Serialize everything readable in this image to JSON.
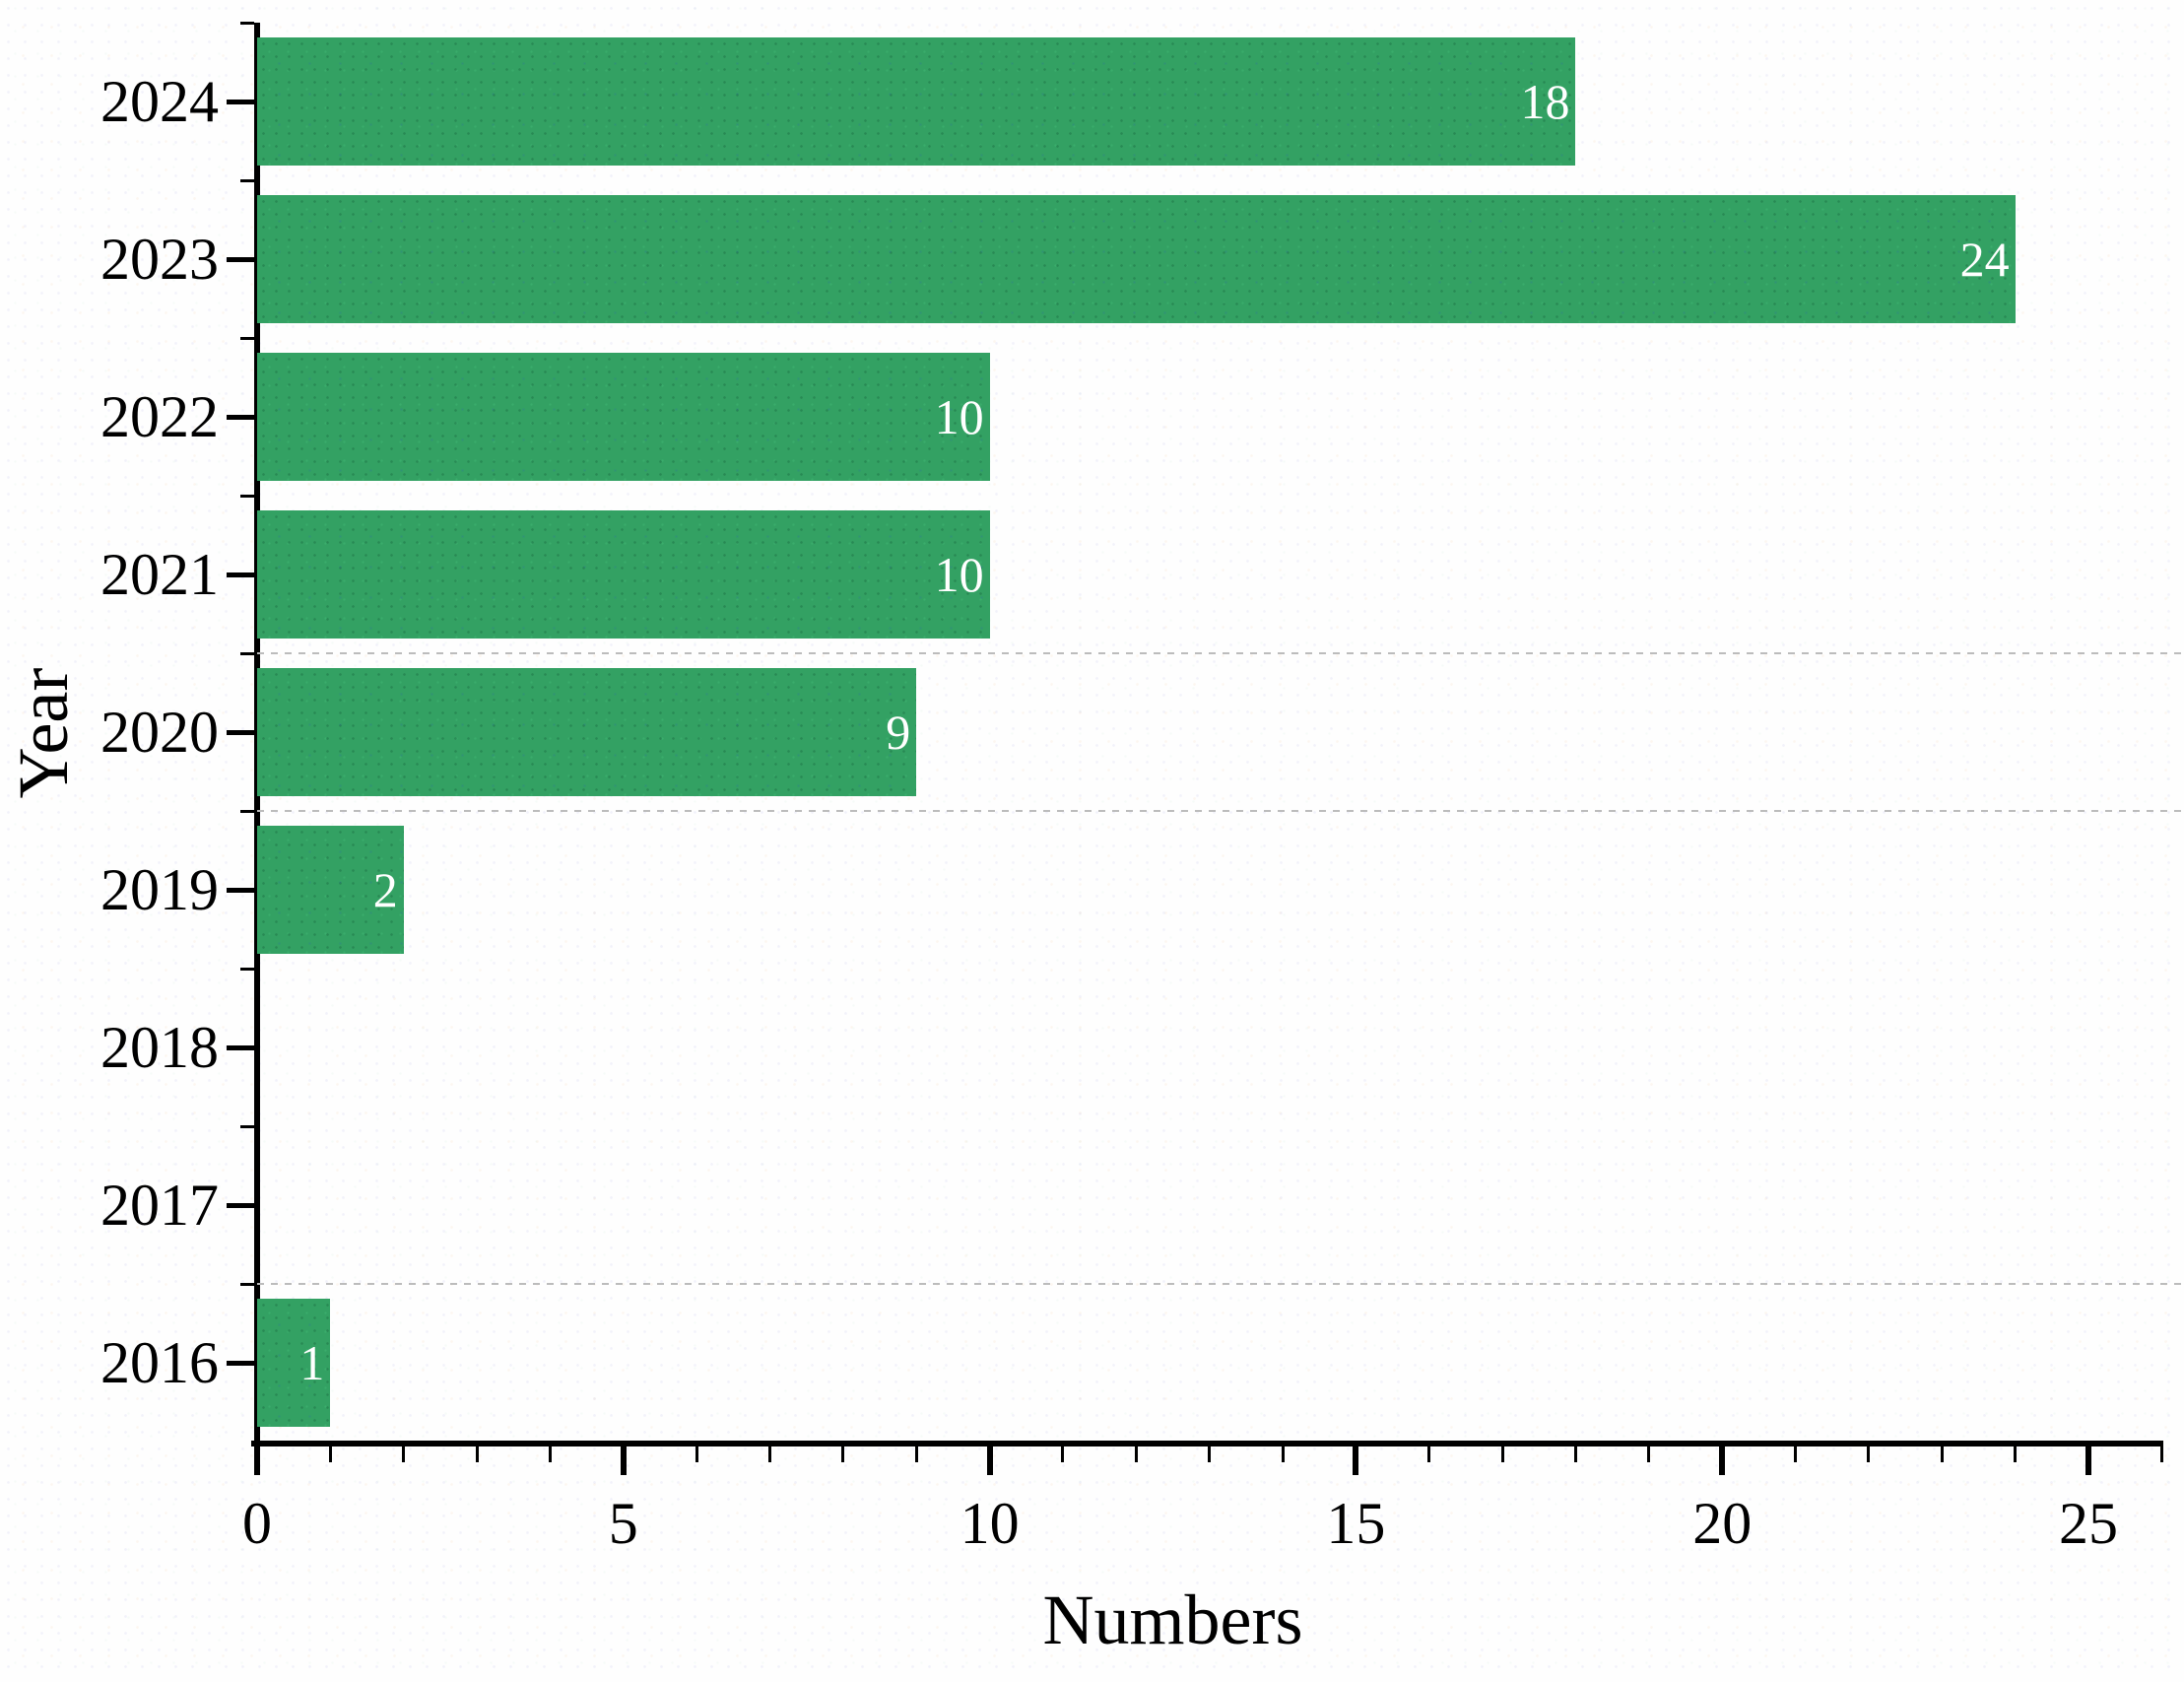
{
  "chart_data": {
    "type": "bar",
    "orientation": "horizontal",
    "title": "",
    "xlabel": "Numbers",
    "ylabel": "Year",
    "categories": [
      "2024",
      "2023",
      "2022",
      "2021",
      "2020",
      "2019",
      "2018",
      "2017",
      "2016"
    ],
    "values": [
      18,
      24,
      10,
      10,
      9,
      2,
      0,
      0,
      1
    ],
    "value_labels": [
      "18",
      "24",
      "10",
      "10",
      "9",
      "2",
      "",
      "",
      "1"
    ],
    "xlim": [
      0,
      26
    ],
    "x_major_ticks": [
      0,
      5,
      10,
      15,
      20,
      25
    ],
    "x_major_tick_labels": [
      "0",
      "5",
      "10",
      "15",
      "20",
      "25"
    ],
    "x_minor_tick_step": 1,
    "grid": "partial-dashed",
    "gridline_boundaries_after_category_index": [
      3,
      4,
      7
    ],
    "legend": "none",
    "colors": {
      "bar_fill": "#33a163",
      "bar_value_text": "#ffffff",
      "axis": "#000000",
      "tick_label_text": "#000000",
      "gridline": "#bcbcbc",
      "background": "#fefefe"
    }
  }
}
